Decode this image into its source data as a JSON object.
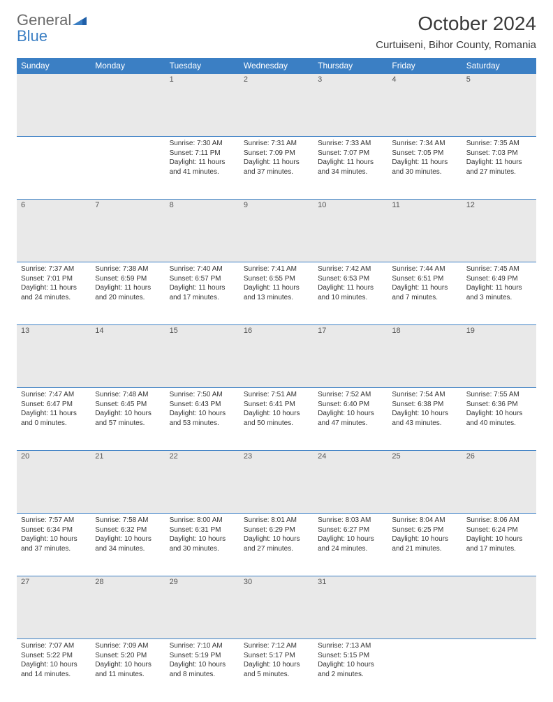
{
  "brand": {
    "gray": "General",
    "blue": "Blue"
  },
  "title": "October 2024",
  "location": "Curtuiseni, Bihor County, Romania",
  "colors": {
    "header_bg": "#3b7fc4",
    "header_text": "#ffffff",
    "daynum_bg": "#e9e9e9",
    "border": "#3b7fc4",
    "text": "#333333",
    "logo_gray": "#6b6b6b",
    "logo_blue": "#3b7fc4"
  },
  "daysOfWeek": [
    "Sunday",
    "Monday",
    "Tuesday",
    "Wednesday",
    "Thursday",
    "Friday",
    "Saturday"
  ],
  "weeks": [
    [
      null,
      null,
      {
        "n": "1",
        "sr": "Sunrise: 7:30 AM",
        "ss": "Sunset: 7:11 PM",
        "dl": "Daylight: 11 hours and 41 minutes."
      },
      {
        "n": "2",
        "sr": "Sunrise: 7:31 AM",
        "ss": "Sunset: 7:09 PM",
        "dl": "Daylight: 11 hours and 37 minutes."
      },
      {
        "n": "3",
        "sr": "Sunrise: 7:33 AM",
        "ss": "Sunset: 7:07 PM",
        "dl": "Daylight: 11 hours and 34 minutes."
      },
      {
        "n": "4",
        "sr": "Sunrise: 7:34 AM",
        "ss": "Sunset: 7:05 PM",
        "dl": "Daylight: 11 hours and 30 minutes."
      },
      {
        "n": "5",
        "sr": "Sunrise: 7:35 AM",
        "ss": "Sunset: 7:03 PM",
        "dl": "Daylight: 11 hours and 27 minutes."
      }
    ],
    [
      {
        "n": "6",
        "sr": "Sunrise: 7:37 AM",
        "ss": "Sunset: 7:01 PM",
        "dl": "Daylight: 11 hours and 24 minutes."
      },
      {
        "n": "7",
        "sr": "Sunrise: 7:38 AM",
        "ss": "Sunset: 6:59 PM",
        "dl": "Daylight: 11 hours and 20 minutes."
      },
      {
        "n": "8",
        "sr": "Sunrise: 7:40 AM",
        "ss": "Sunset: 6:57 PM",
        "dl": "Daylight: 11 hours and 17 minutes."
      },
      {
        "n": "9",
        "sr": "Sunrise: 7:41 AM",
        "ss": "Sunset: 6:55 PM",
        "dl": "Daylight: 11 hours and 13 minutes."
      },
      {
        "n": "10",
        "sr": "Sunrise: 7:42 AM",
        "ss": "Sunset: 6:53 PM",
        "dl": "Daylight: 11 hours and 10 minutes."
      },
      {
        "n": "11",
        "sr": "Sunrise: 7:44 AM",
        "ss": "Sunset: 6:51 PM",
        "dl": "Daylight: 11 hours and 7 minutes."
      },
      {
        "n": "12",
        "sr": "Sunrise: 7:45 AM",
        "ss": "Sunset: 6:49 PM",
        "dl": "Daylight: 11 hours and 3 minutes."
      }
    ],
    [
      {
        "n": "13",
        "sr": "Sunrise: 7:47 AM",
        "ss": "Sunset: 6:47 PM",
        "dl": "Daylight: 11 hours and 0 minutes."
      },
      {
        "n": "14",
        "sr": "Sunrise: 7:48 AM",
        "ss": "Sunset: 6:45 PM",
        "dl": "Daylight: 10 hours and 57 minutes."
      },
      {
        "n": "15",
        "sr": "Sunrise: 7:50 AM",
        "ss": "Sunset: 6:43 PM",
        "dl": "Daylight: 10 hours and 53 minutes."
      },
      {
        "n": "16",
        "sr": "Sunrise: 7:51 AM",
        "ss": "Sunset: 6:41 PM",
        "dl": "Daylight: 10 hours and 50 minutes."
      },
      {
        "n": "17",
        "sr": "Sunrise: 7:52 AM",
        "ss": "Sunset: 6:40 PM",
        "dl": "Daylight: 10 hours and 47 minutes."
      },
      {
        "n": "18",
        "sr": "Sunrise: 7:54 AM",
        "ss": "Sunset: 6:38 PM",
        "dl": "Daylight: 10 hours and 43 minutes."
      },
      {
        "n": "19",
        "sr": "Sunrise: 7:55 AM",
        "ss": "Sunset: 6:36 PM",
        "dl": "Daylight: 10 hours and 40 minutes."
      }
    ],
    [
      {
        "n": "20",
        "sr": "Sunrise: 7:57 AM",
        "ss": "Sunset: 6:34 PM",
        "dl": "Daylight: 10 hours and 37 minutes."
      },
      {
        "n": "21",
        "sr": "Sunrise: 7:58 AM",
        "ss": "Sunset: 6:32 PM",
        "dl": "Daylight: 10 hours and 34 minutes."
      },
      {
        "n": "22",
        "sr": "Sunrise: 8:00 AM",
        "ss": "Sunset: 6:31 PM",
        "dl": "Daylight: 10 hours and 30 minutes."
      },
      {
        "n": "23",
        "sr": "Sunrise: 8:01 AM",
        "ss": "Sunset: 6:29 PM",
        "dl": "Daylight: 10 hours and 27 minutes."
      },
      {
        "n": "24",
        "sr": "Sunrise: 8:03 AM",
        "ss": "Sunset: 6:27 PM",
        "dl": "Daylight: 10 hours and 24 minutes."
      },
      {
        "n": "25",
        "sr": "Sunrise: 8:04 AM",
        "ss": "Sunset: 6:25 PM",
        "dl": "Daylight: 10 hours and 21 minutes."
      },
      {
        "n": "26",
        "sr": "Sunrise: 8:06 AM",
        "ss": "Sunset: 6:24 PM",
        "dl": "Daylight: 10 hours and 17 minutes."
      }
    ],
    [
      {
        "n": "27",
        "sr": "Sunrise: 7:07 AM",
        "ss": "Sunset: 5:22 PM",
        "dl": "Daylight: 10 hours and 14 minutes."
      },
      {
        "n": "28",
        "sr": "Sunrise: 7:09 AM",
        "ss": "Sunset: 5:20 PM",
        "dl": "Daylight: 10 hours and 11 minutes."
      },
      {
        "n": "29",
        "sr": "Sunrise: 7:10 AM",
        "ss": "Sunset: 5:19 PM",
        "dl": "Daylight: 10 hours and 8 minutes."
      },
      {
        "n": "30",
        "sr": "Sunrise: 7:12 AM",
        "ss": "Sunset: 5:17 PM",
        "dl": "Daylight: 10 hours and 5 minutes."
      },
      {
        "n": "31",
        "sr": "Sunrise: 7:13 AM",
        "ss": "Sunset: 5:15 PM",
        "dl": "Daylight: 10 hours and 2 minutes."
      },
      null,
      null
    ]
  ]
}
